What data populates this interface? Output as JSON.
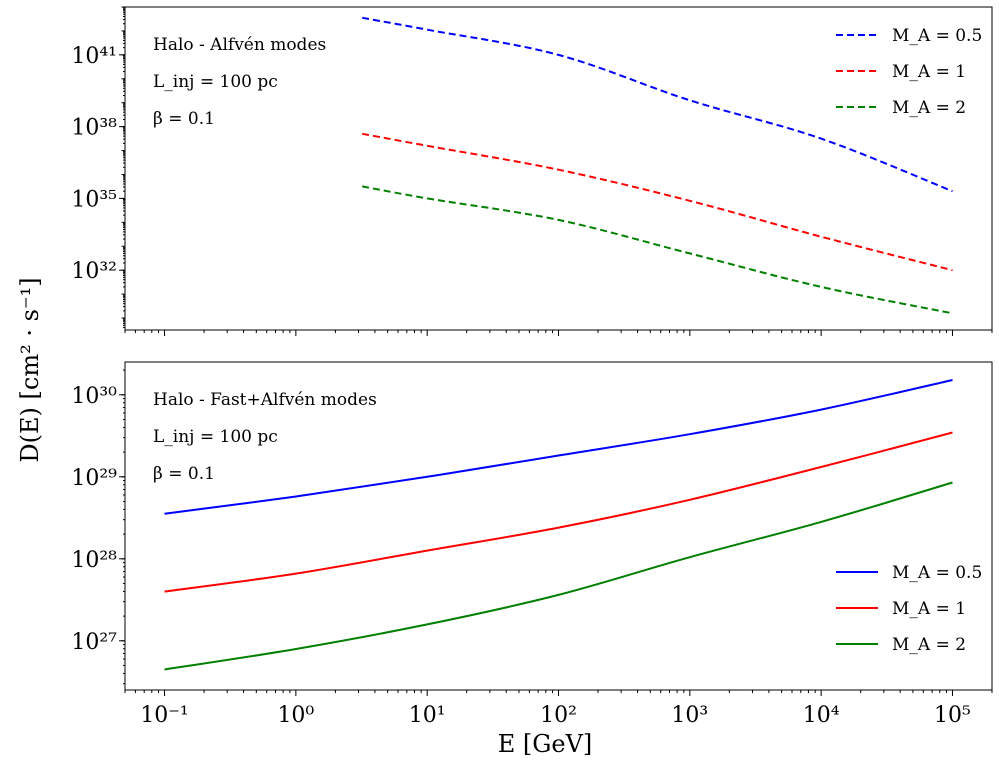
{
  "figure": {
    "ylabel": "D(E) [cm² · s⁻¹]",
    "xlabel": "E [GeV]"
  },
  "chart_data": [
    {
      "type": "line",
      "panel": "top",
      "annotations": [
        "Halo - Alfvén modes",
        "L_inj = 100 pc",
        "β = 0.1"
      ],
      "xscale": "log",
      "yscale": "log",
      "xlim": [
        0.05,
        200000
      ],
      "ylim_log10": [
        29.5,
        43
      ],
      "x_ticks": [
        {
          "value": 0.1,
          "label": "10⁻¹"
        },
        {
          "value": 1,
          "label": "10⁰"
        },
        {
          "value": 10,
          "label": "10¹"
        },
        {
          "value": 100,
          "label": "10²"
        },
        {
          "value": 1000,
          "label": "10³"
        },
        {
          "value": 10000,
          "label": "10⁴"
        },
        {
          "value": 100000,
          "label": "10⁵"
        }
      ],
      "y_ticks": [
        {
          "value": 1e+32,
          "label": "10³²"
        },
        {
          "value": 1e+35,
          "label": "10³⁵"
        },
        {
          "value": 1e+38,
          "label": "10³⁸"
        },
        {
          "value": 1e+41,
          "label": "10⁴¹"
        }
      ],
      "show_x_tick_labels": false,
      "legend": "top-right",
      "grid": false,
      "x": [
        3.2,
        10,
        100,
        1000,
        10000,
        100000
      ],
      "series": [
        {
          "name": "M_A = 0.5",
          "color": "#0000ff",
          "style": "dashed",
          "log10_values": [
            42.55,
            42.05,
            41.0,
            39.1,
            37.5,
            35.3
          ]
        },
        {
          "name": "M_A = 1",
          "color": "#ff0000",
          "style": "dashed",
          "log10_values": [
            37.7,
            37.2,
            36.2,
            34.9,
            33.4,
            32.0
          ]
        },
        {
          "name": "M_A = 2",
          "color": "#008000",
          "style": "dashed",
          "log10_values": [
            35.5,
            35.0,
            34.1,
            32.7,
            31.3,
            30.2
          ]
        }
      ]
    },
    {
      "type": "line",
      "panel": "bottom",
      "annotations": [
        "Halo - Fast+Alfvén modes",
        "L_inj = 100 pc",
        "β = 0.1"
      ],
      "xscale": "log",
      "yscale": "log",
      "xlim": [
        0.05,
        200000
      ],
      "ylim_log10": [
        26.4,
        30.4
      ],
      "x_ticks": [
        {
          "value": 0.1,
          "label": "10⁻¹"
        },
        {
          "value": 1,
          "label": "10⁰"
        },
        {
          "value": 10,
          "label": "10¹"
        },
        {
          "value": 100,
          "label": "10²"
        },
        {
          "value": 1000,
          "label": "10³"
        },
        {
          "value": 10000,
          "label": "10⁴"
        },
        {
          "value": 100000,
          "label": "10⁵"
        }
      ],
      "y_ticks": [
        {
          "value": 1e+27,
          "label": "10²⁷"
        },
        {
          "value": 1e+28,
          "label": "10²⁸"
        },
        {
          "value": 1e+29,
          "label": "10²⁹"
        },
        {
          "value": 1e+30,
          "label": "10³⁰"
        }
      ],
      "show_x_tick_labels": true,
      "legend": "bottom-right",
      "grid": false,
      "x": [
        0.1,
        1,
        10,
        100,
        1000,
        10000,
        100000
      ],
      "series": [
        {
          "name": "M_A = 0.5",
          "color": "#0000ff",
          "style": "solid",
          "log10_values": [
            28.55,
            28.76,
            29.0,
            29.26,
            29.52,
            29.82,
            30.18
          ]
        },
        {
          "name": "M_A = 1",
          "color": "#ff0000",
          "style": "solid",
          "log10_values": [
            27.6,
            27.82,
            28.1,
            28.38,
            28.72,
            29.12,
            29.54
          ]
        },
        {
          "name": "M_A = 2",
          "color": "#008000",
          "style": "solid",
          "log10_values": [
            26.65,
            26.9,
            27.2,
            27.56,
            28.02,
            28.45,
            28.93
          ]
        }
      ]
    }
  ]
}
